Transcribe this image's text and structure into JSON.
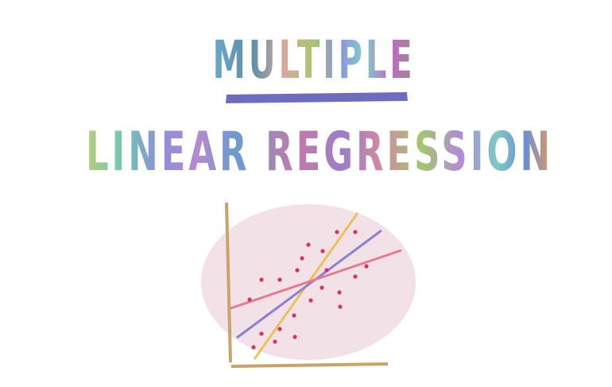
{
  "header": {
    "title_line1": "MULTIPLE",
    "title_line2": "LINEAR REGRESSION"
  }
}
